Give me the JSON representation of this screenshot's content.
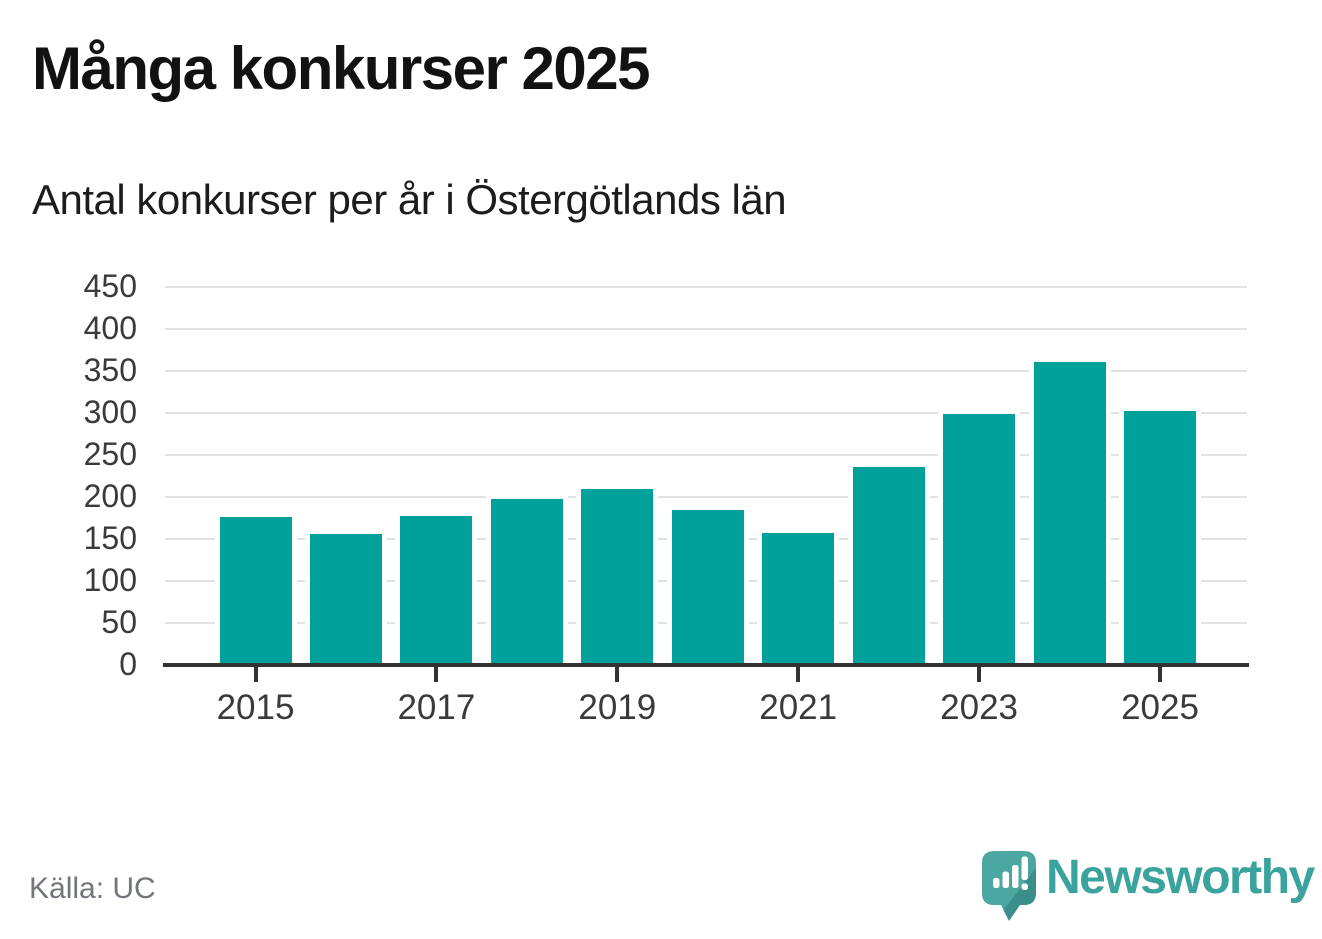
{
  "header": {
    "title": "Många konkurser 2025",
    "subtitle": "Antal konkurser per år i Östergötlands län"
  },
  "footer": {
    "source": "Källa: UC",
    "brand_name": "Newsworthy",
    "brand_mark_icon": "speech-bubble-bar-chart-exclamation-icon"
  },
  "colors": {
    "bar": "#00a19a",
    "gridline": "#e2e2e2",
    "axis": "#333333",
    "tick_label": "#3a3a3a",
    "title_text": "#121212",
    "source_text": "#72757c",
    "brand_teal": "#3ba39e",
    "brand_bubble_light": "#4da7a1",
    "brand_bubble_dark": "#3a8f8a"
  },
  "chart_data": {
    "type": "bar",
    "title": "Många konkurser 2025",
    "subtitle": "Antal konkurser per år i Östergötlands län",
    "categories": [
      2015,
      2016,
      2017,
      2018,
      2019,
      2020,
      2021,
      2022,
      2023,
      2024,
      2025
    ],
    "values": [
      175,
      155,
      176,
      196,
      208,
      183,
      156,
      235,
      298,
      360,
      301
    ],
    "xlabel": "",
    "ylabel": "",
    "ylim": [
      0,
      450
    ],
    "ytick_step": 50,
    "yticks": [
      0,
      50,
      100,
      150,
      200,
      250,
      300,
      350,
      400,
      450
    ],
    "xticks_shown": [
      2015,
      2017,
      2019,
      2021,
      2023,
      2025
    ],
    "grid": true,
    "legend": false,
    "bar_color": "#00a19a"
  }
}
